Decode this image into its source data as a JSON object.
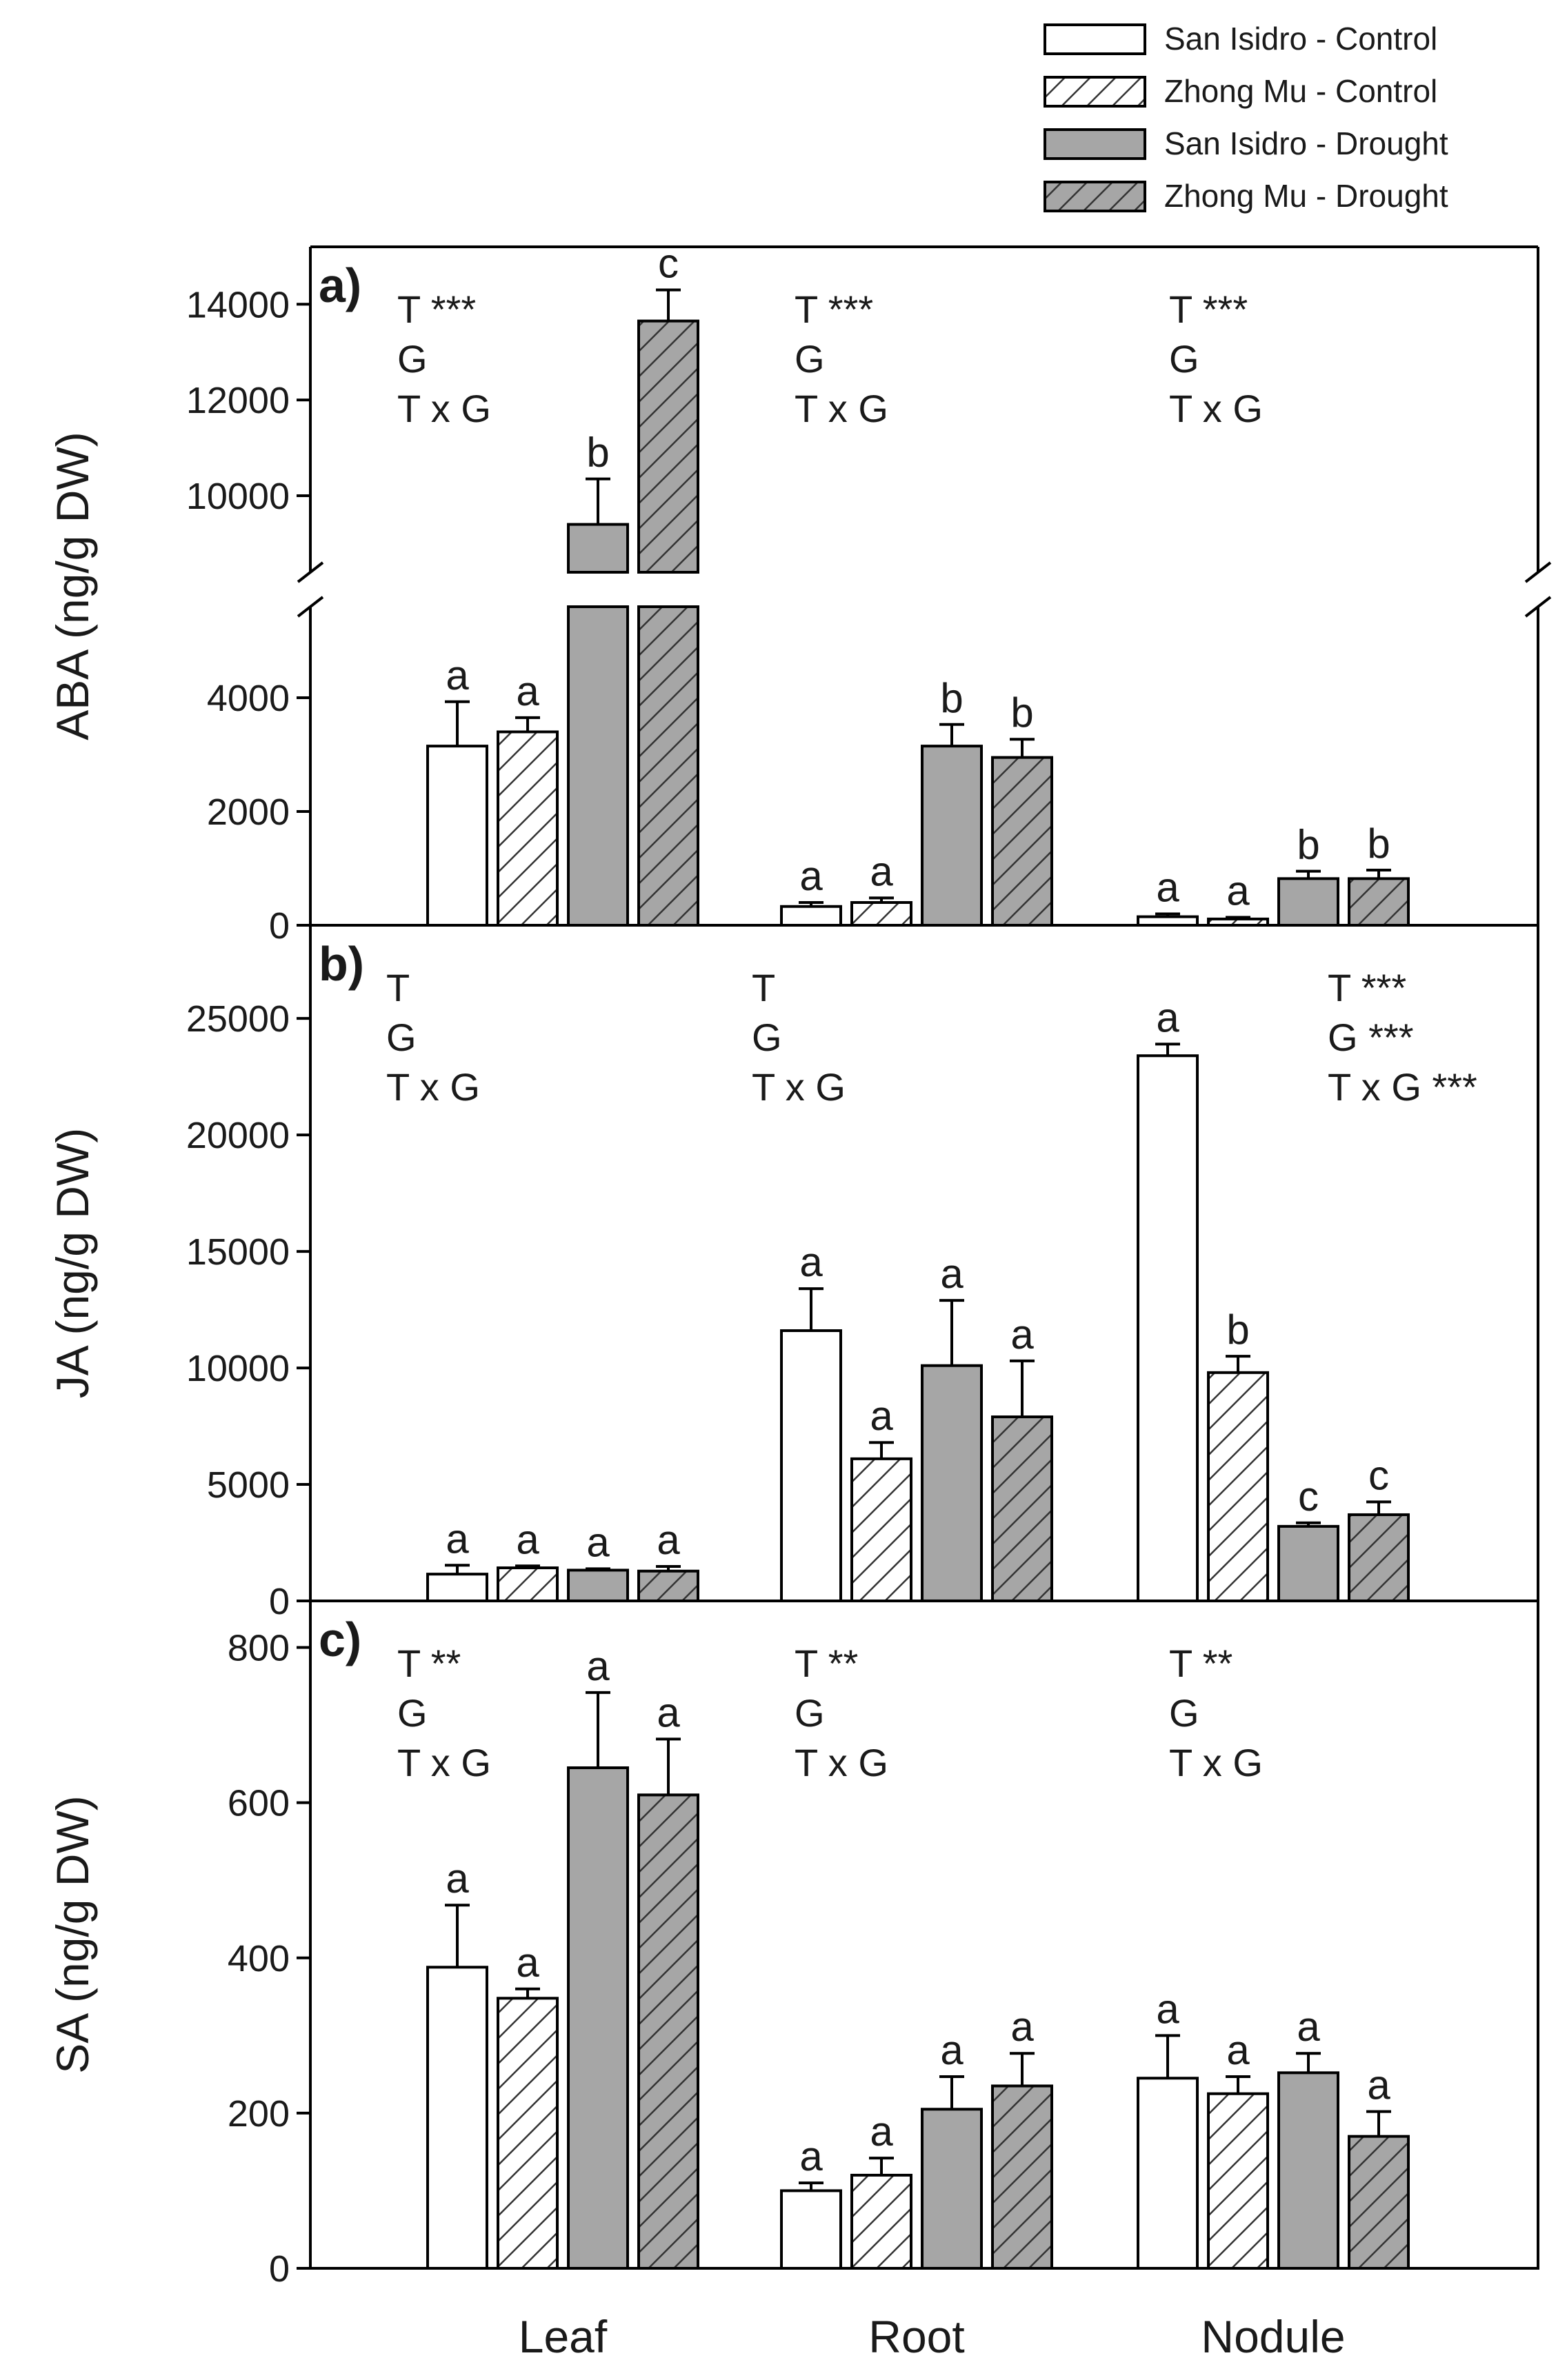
{
  "colors": {
    "control_fill": "#ffffff",
    "drought_fill": "#a6a6a6",
    "hatch_line": "#333333",
    "axis": "#000000"
  },
  "chart_data": {
    "type": "bar",
    "categories": [
      "Leaf",
      "Root",
      "Nodule"
    ],
    "legend": [
      {
        "name": "San Isidro - Control",
        "pattern": "solid",
        "fill": "control"
      },
      {
        "name": "Zhong Mu - Control",
        "pattern": "hatched",
        "fill": "control"
      },
      {
        "name": "San Isidro - Drought",
        "pattern": "solid",
        "fill": "drought"
      },
      {
        "name": "Zhong Mu - Drought",
        "pattern": "hatched",
        "fill": "drought"
      }
    ],
    "panels": [
      {
        "id": "a",
        "label": "a)",
        "ylabel": "ABA  (ng/g DW)",
        "broken_axis": true,
        "lower_range": [
          0,
          5600
        ],
        "upper_range": [
          8400,
          15200
        ],
        "lower_ticks": [
          0,
          2000,
          4000
        ],
        "upper_ticks": [
          10000,
          12000,
          14000
        ],
        "tick_labels_lower": [
          "0",
          "2000",
          "4000"
        ],
        "tick_labels_upper": [
          "10000",
          "12000",
          "14000"
        ],
        "series": [
          {
            "name": "San Isidro - Control",
            "values": [
              3150,
              330,
              150
            ],
            "errors": [
              780,
              70,
              50
            ],
            "letters": [
              "a",
              "a",
              "a"
            ]
          },
          {
            "name": "Zhong Mu - Control",
            "values": [
              3400,
              400,
              110
            ],
            "errors": [
              250,
              80,
              30
            ],
            "letters": [
              "a",
              "a",
              "a"
            ]
          },
          {
            "name": "San Isidro - Drought",
            "values": [
              9400,
              3150,
              820
            ],
            "errors": [
              950,
              380,
              130
            ],
            "letters": [
              "b",
              "b",
              "b"
            ]
          },
          {
            "name": "Zhong Mu - Drought",
            "values": [
              13650,
              2950,
              820
            ],
            "errors": [
              650,
              320,
              150
            ],
            "letters": [
              "c",
              "b",
              "b"
            ]
          }
        ],
        "stats": [
          [
            "T ***",
            "G",
            "T x G"
          ],
          [
            "T ***",
            "G",
            "T x G"
          ],
          [
            "T ***",
            "G",
            "T x G"
          ]
        ]
      },
      {
        "id": "b",
        "label": "b)",
        "ylabel": "JA (ng/g DW)",
        "ylim": [
          0,
          29000
        ],
        "ticks": [
          0,
          5000,
          10000,
          15000,
          20000,
          25000
        ],
        "tick_labels": [
          "0",
          "5000",
          "10000",
          "15000",
          "20000",
          "25000"
        ],
        "series": [
          {
            "name": "San Isidro - Control",
            "values": [
              1150,
              11600,
              23400
            ],
            "errors": [
              380,
              1800,
              500
            ],
            "letters": [
              "a",
              "a",
              "a"
            ]
          },
          {
            "name": "Zhong Mu - Control",
            "values": [
              1420,
              6100,
              9800
            ],
            "errors": [
              80,
              700,
              700
            ],
            "letters": [
              "a",
              "a",
              "b"
            ]
          },
          {
            "name": "San Isidro - Drought",
            "values": [
              1320,
              10100,
              3200
            ],
            "errors": [
              60,
              2800,
              150
            ],
            "letters": [
              "a",
              "a",
              "c"
            ]
          },
          {
            "name": "Zhong Mu - Drought",
            "values": [
              1280,
              7900,
              3700
            ],
            "errors": [
              200,
              2400,
              550
            ],
            "letters": [
              "a",
              "a",
              "c"
            ]
          }
        ],
        "stats": [
          [
            "T",
            "G",
            "T x G"
          ],
          [
            "T",
            "G",
            "T x G"
          ],
          [
            "T ***",
            "G ***",
            "T x G ***"
          ]
        ]
      },
      {
        "id": "c",
        "label": "c)",
        "ylabel": "SA (ng/g DW)",
        "ylim": [
          0,
          860
        ],
        "ticks": [
          0,
          200,
          400,
          600,
          800
        ],
        "tick_labels": [
          "0",
          "200",
          "400",
          "600",
          "800"
        ],
        "series": [
          {
            "name": "San Isidro - Control",
            "values": [
              388,
              100,
              245
            ],
            "errors": [
              80,
              10,
              55
            ],
            "letters": [
              "a",
              "a",
              "a"
            ]
          },
          {
            "name": "Zhong Mu - Control",
            "values": [
              348,
              120,
              225
            ],
            "errors": [
              12,
              22,
              22
            ],
            "letters": [
              "a",
              "a",
              "a"
            ]
          },
          {
            "name": "San Isidro - Drought",
            "values": [
              645,
              205,
              252
            ],
            "errors": [
              97,
              42,
              25
            ],
            "letters": [
              "a",
              "a",
              "a"
            ]
          },
          {
            "name": "Zhong Mu - Drought",
            "values": [
              610,
              235,
              170
            ],
            "errors": [
              72,
              42,
              32
            ],
            "letters": [
              "a",
              "a",
              "a"
            ]
          }
        ],
        "stats": [
          [
            "T **",
            "G",
            "T x G"
          ],
          [
            "T **",
            "G",
            "T x G"
          ],
          [
            "T **",
            "G",
            "T x G"
          ]
        ]
      }
    ]
  }
}
